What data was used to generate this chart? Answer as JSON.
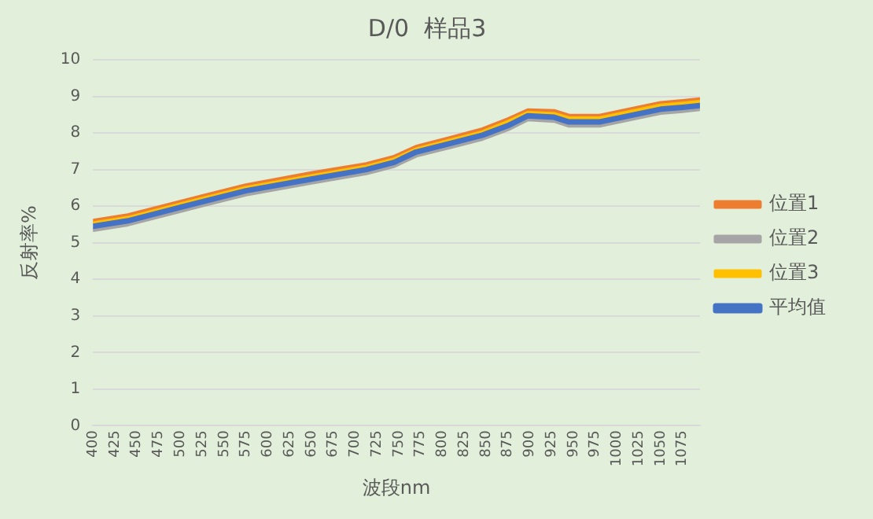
{
  "chart_data": {
    "type": "line",
    "title": "D/0  样品3",
    "xlabel": "波段nm",
    "ylabel": "反射率%",
    "x": [
      400,
      440,
      500,
      575,
      650,
      713,
      745,
      770,
      810,
      846,
      875,
      898,
      928,
      945,
      980,
      1010,
      1050,
      1075,
      1095
    ],
    "xlim": [
      400,
      1095
    ],
    "xticks": [
      400,
      425,
      450,
      475,
      500,
      525,
      550,
      575,
      600,
      625,
      650,
      675,
      700,
      725,
      750,
      775,
      800,
      825,
      850,
      875,
      900,
      925,
      950,
      975,
      1000,
      1025,
      1050,
      1075
    ],
    "ylim": [
      0,
      10
    ],
    "yticks": [
      0,
      1,
      2,
      3,
      4,
      5,
      6,
      7,
      8,
      9,
      10
    ],
    "grid": "y",
    "legend": "right",
    "marker": "none",
    "line_style": "solid",
    "series": [
      {
        "name": "位置1",
        "color": "#ed7d31",
        "values": [
          5.6,
          5.75,
          6.12,
          6.57,
          6.9,
          7.15,
          7.35,
          7.62,
          7.87,
          8.1,
          8.37,
          8.62,
          8.6,
          8.47,
          8.47,
          8.62,
          8.82,
          8.87,
          8.92
        ]
      },
      {
        "name": "位置2",
        "color": "#a5a5a5",
        "values": [
          5.35,
          5.5,
          5.87,
          6.32,
          6.64,
          6.9,
          7.1,
          7.38,
          7.62,
          7.84,
          8.1,
          8.37,
          8.33,
          8.2,
          8.2,
          8.35,
          8.55,
          8.6,
          8.65
        ]
      },
      {
        "name": "位置3",
        "color": "#ffc000",
        "values": [
          5.53,
          5.68,
          6.05,
          6.5,
          6.82,
          7.08,
          7.28,
          7.55,
          7.8,
          8.02,
          8.3,
          8.55,
          8.52,
          8.4,
          8.4,
          8.55,
          8.75,
          8.8,
          8.85
        ]
      },
      {
        "name": "平均值",
        "color": "#4472c4",
        "values": [
          5.45,
          5.6,
          5.97,
          6.42,
          6.74,
          7.0,
          7.2,
          7.48,
          7.72,
          7.94,
          8.2,
          8.47,
          8.43,
          8.3,
          8.3,
          8.45,
          8.65,
          8.7,
          8.75
        ]
      }
    ]
  }
}
